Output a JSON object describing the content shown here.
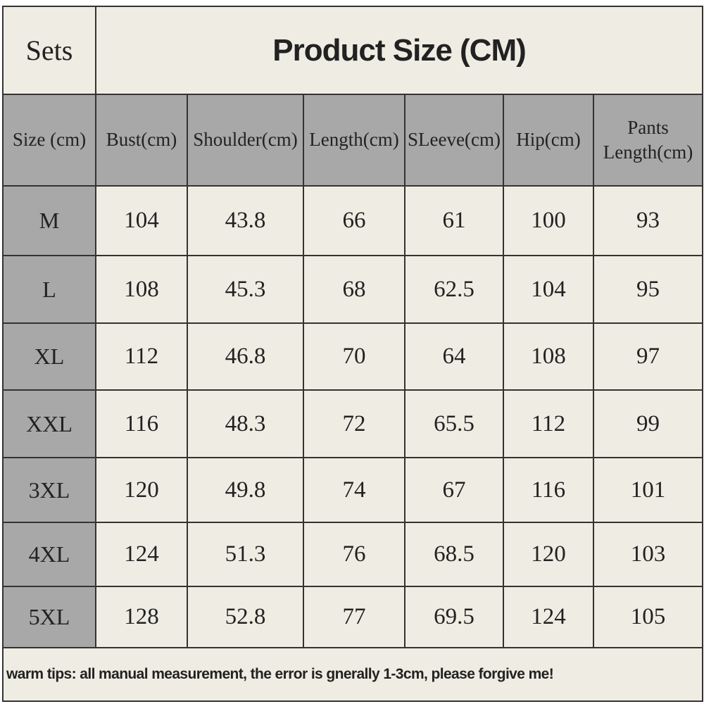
{
  "header": {
    "sets": "Sets",
    "title": "Product Size (CM)"
  },
  "table": {
    "columns": [
      "Size (cm)",
      "Bust(cm)",
      "Shoulder(cm)",
      "Length(cm)",
      "SLeeve(cm)",
      "Hip(cm)",
      "Pants Length(cm)"
    ],
    "rows": [
      [
        "M",
        104,
        43.8,
        66,
        61,
        100,
        93
      ],
      [
        "L",
        108,
        45.3,
        68,
        62.5,
        104,
        95
      ],
      [
        "XL",
        112,
        46.8,
        70,
        64,
        108,
        97
      ],
      [
        "XXL",
        116,
        48.3,
        72,
        65.5,
        112,
        99
      ],
      [
        "3XL",
        120,
        49.8,
        74,
        67,
        116,
        101
      ],
      [
        "4XL",
        124,
        51.3,
        76,
        68.5,
        120,
        103
      ],
      [
        "5XL",
        128,
        52.8,
        77,
        69.5,
        124,
        105
      ]
    ]
  },
  "footer": "warm tips: all manual measurement, the error is gnerally 1-3cm, please forgive me!"
}
